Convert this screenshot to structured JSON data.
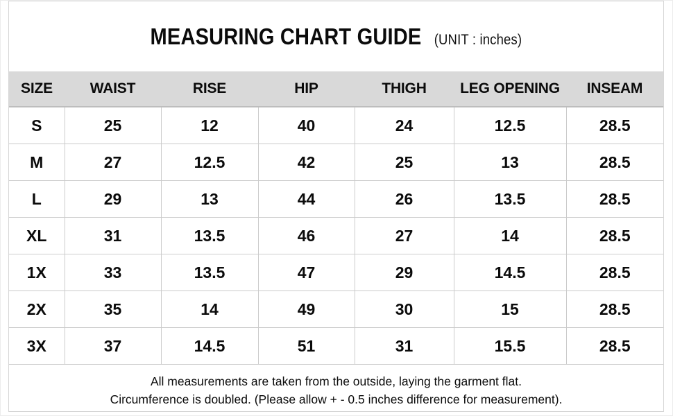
{
  "chart_data": {
    "type": "table",
    "title": "MEASURING CHART GUIDE",
    "unit_label": "(UNIT : inches)",
    "columns": [
      "SIZE",
      "WAIST",
      "RISE",
      "HIP",
      "THIGH",
      "LEG OPENING",
      "INSEAM"
    ],
    "rows": [
      [
        "S",
        "25",
        "12",
        "40",
        "24",
        "12.5",
        "28.5"
      ],
      [
        "M",
        "27",
        "12.5",
        "42",
        "25",
        "13",
        "28.5"
      ],
      [
        "L",
        "29",
        "13",
        "44",
        "26",
        "13.5",
        "28.5"
      ],
      [
        "XL",
        "31",
        "13.5",
        "46",
        "27",
        "14",
        "28.5"
      ],
      [
        "1X",
        "33",
        "13.5",
        "47",
        "29",
        "14.5",
        "28.5"
      ],
      [
        "2X",
        "35",
        "14",
        "49",
        "30",
        "15",
        "28.5"
      ],
      [
        "3X",
        "37",
        "14.5",
        "51",
        "31",
        "15.5",
        "28.5"
      ]
    ],
    "annotations": [
      "All measurements are taken from the outside, laying the garment flat.",
      "Circumference is doubled. (Please allow + - 0.5 inches difference for measurement)."
    ],
    "colors": {
      "header_bg": "#d9d9d9",
      "grid_line": "#cbcbcb",
      "text": "#0b0b0b",
      "background": "#ffffff"
    }
  }
}
